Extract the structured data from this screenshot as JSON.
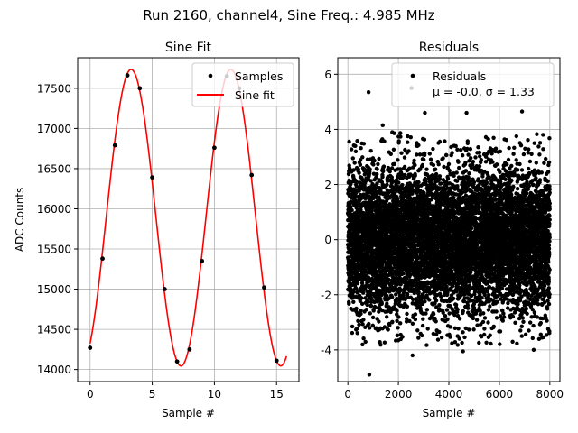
{
  "figure_title": "Run 2160, channel4, Sine Freq.: 4.985 MHz",
  "colors": {
    "fit_line": "#ff0000",
    "samples": "#000000",
    "grid": "#b0b0b0"
  },
  "chart_data": [
    {
      "type": "line",
      "title": "Sine Fit",
      "xlabel": "Sample #",
      "ylabel": "ADC Counts",
      "xlim": [
        -1,
        16.8
      ],
      "ylim": [
        13850,
        17880
      ],
      "xticks": [
        0,
        5,
        10,
        15
      ],
      "yticks": [
        14000,
        14500,
        15000,
        15500,
        16000,
        16500,
        17000,
        17500
      ],
      "grid": true,
      "legend_position": "top-right",
      "legend": [
        {
          "label": "Samples",
          "marker": "dot"
        },
        {
          "label": "Sine fit",
          "marker": "line"
        }
      ],
      "samples": {
        "x": [
          0,
          1,
          2,
          3,
          4,
          5,
          6,
          7,
          8,
          9,
          10,
          11,
          12,
          13,
          14,
          15
        ],
        "y": [
          14270,
          15380,
          16790,
          17660,
          17500,
          16390,
          15000,
          14100,
          14250,
          15350,
          16760,
          17650,
          17500,
          16420,
          15020,
          14110
        ]
      },
      "fit": {
        "amplitude": 1845,
        "offset": 15890,
        "period_samples": 8.024,
        "peak_x": 3.3,
        "x_range": [
          0,
          15.8
        ]
      }
    },
    {
      "type": "scatter",
      "title": "Residuals",
      "xlabel": "Sample #",
      "ylabel": "",
      "xlim": [
        -400,
        8400
      ],
      "ylim": [
        -5.15,
        6.6
      ],
      "xticks": [
        0,
        2000,
        4000,
        6000,
        8000
      ],
      "yticks": [
        -4,
        -2,
        0,
        2,
        4,
        6
      ],
      "grid": true,
      "legend_position": "top-right",
      "legend": [
        {
          "label": "Residuals",
          "marker": "dot"
        },
        {
          "label": "$\\mu$ = -0.0, $\\sigma$ = 1.33",
          "display": "μ = -0.0, σ = 1.33",
          "marker": "none"
        }
      ],
      "n_points": 8000,
      "mean": -0.0,
      "std": 1.33,
      "outliers": {
        "x": [
          820,
          1380,
          2520,
          3050,
          4700,
          6900,
          850,
          2560,
          7360,
          4560
        ],
        "y": [
          5.35,
          4.15,
          5.5,
          4.6,
          4.6,
          4.65,
          -4.9,
          -4.2,
          -4.0,
          -4.05
        ]
      }
    }
  ]
}
